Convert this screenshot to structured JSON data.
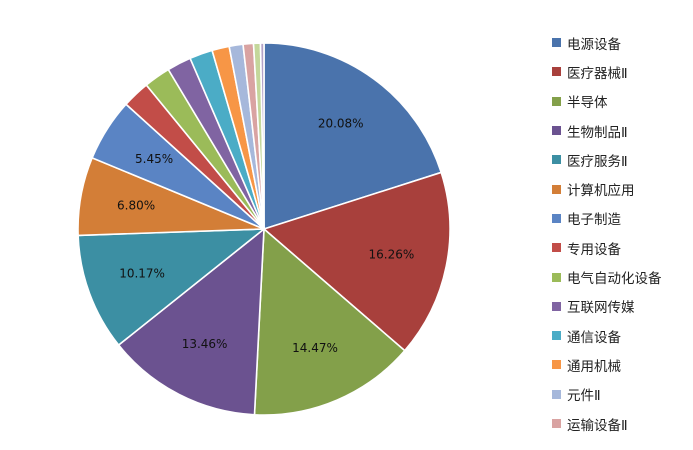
{
  "chart_data": {
    "type": "pie",
    "start_angle_deg": 0,
    "direction": "clockwise",
    "slices": [
      {
        "name": "电源设备",
        "value": 20.08,
        "label": "20.08%",
        "color": "#4A73AC"
      },
      {
        "name": "医疗器械Ⅱ",
        "value": 16.26,
        "label": "16.26%",
        "color": "#A8403C"
      },
      {
        "name": "半导体",
        "value": 14.47,
        "label": "14.47%",
        "color": "#83A04A"
      },
      {
        "name": "生物制品Ⅱ",
        "value": 13.46,
        "label": "13.46%",
        "color": "#6B5290"
      },
      {
        "name": "医疗服务Ⅱ",
        "value": 10.17,
        "label": "10.17%",
        "color": "#3C8FA3"
      },
      {
        "name": "计算机应用",
        "value": 6.8,
        "label": "6.80%",
        "color": "#D37E37"
      },
      {
        "name": "电子制造",
        "value": 5.45,
        "label": "5.45%",
        "color": "#5A84C4"
      },
      {
        "name": "专用设备",
        "value": 2.4,
        "label": "",
        "color": "#C24D48"
      },
      {
        "name": "电气自动化设备",
        "value": 2.3,
        "label": "",
        "color": "#9BBB59"
      },
      {
        "name": "互联网传媒",
        "value": 2.1,
        "label": "",
        "color": "#8064A2"
      },
      {
        "name": "通信设备",
        "value": 2.0,
        "label": "",
        "color": "#4BACC6"
      },
      {
        "name": "通用机械",
        "value": 1.5,
        "label": "",
        "color": "#F79646"
      },
      {
        "name": "元件Ⅱ",
        "value": 1.2,
        "label": "",
        "color": "#A6B8DB"
      },
      {
        "name": "运输设备Ⅱ",
        "value": 0.9,
        "label": "",
        "color": "#D9A3A2"
      },
      {
        "name": "",
        "value": 0.6,
        "label": "",
        "color": "#C4D79B"
      },
      {
        "name": "",
        "value": 0.3,
        "label": "",
        "color": "#B3A2C7"
      }
    ],
    "legend": {
      "position": "right",
      "entries": [
        "电源设备",
        "医疗器械Ⅱ",
        "半导体",
        "生物制品Ⅱ",
        "医疗服务Ⅱ",
        "计算机应用",
        "电子制造",
        "专用设备",
        "电气自动化设备",
        "互联网传媒",
        "通信设备",
        "通用机械",
        "元件Ⅱ",
        "运输设备Ⅱ"
      ]
    }
  }
}
